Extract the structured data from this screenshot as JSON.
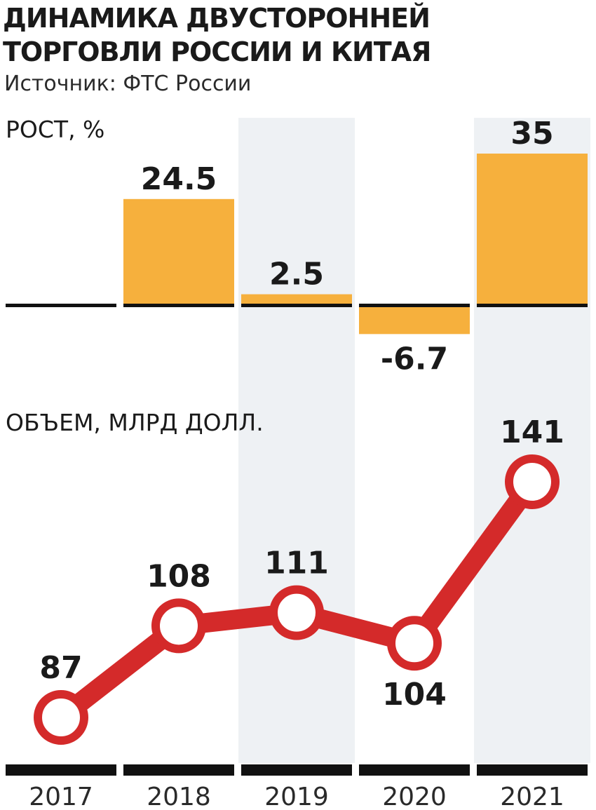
{
  "title": "ДИНАМИКА ДВУСТОРОННЕЙ ТОРГОВЛИ РОССИИ И КИТАЯ",
  "source": "Источник: ФТС России",
  "colors": {
    "bar": "#f6b03d",
    "line": "#d42a2a",
    "band": "#eef1f4",
    "axis": "#111111"
  },
  "chart_data": [
    {
      "type": "bar",
      "ylabel": "РОСТ, %",
      "categories": [
        "2017",
        "2018",
        "2019",
        "2020",
        "2021"
      ],
      "values": [
        null,
        24.5,
        2.5,
        -6.7,
        35
      ],
      "value_labels": [
        "",
        "24.5",
        "2.5",
        "-6.7",
        "35"
      ],
      "baseline": 0
    },
    {
      "type": "line",
      "ylabel": "ОБЪЕМ, МЛРД ДОЛЛ.",
      "categories": [
        "2017",
        "2018",
        "2019",
        "2020",
        "2021"
      ],
      "values": [
        87,
        108,
        111,
        104,
        141
      ],
      "value_labels": [
        "87",
        "108",
        "111",
        "104",
        "141"
      ]
    }
  ]
}
